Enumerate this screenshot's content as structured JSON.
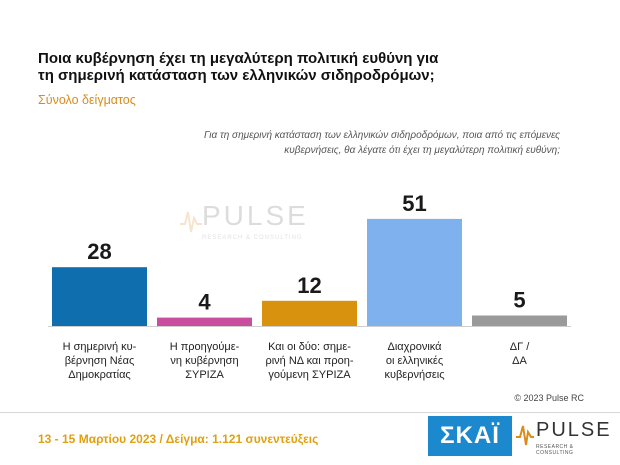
{
  "title": "Ποια κυβέρνηση έχει τη μεγαλύτερη πολιτική ευθύνη για τη σημερινή κατάσταση των ελληνικών σιδηροδρόμων;",
  "subtitle": "Σύνολο δείγματος",
  "question": "Για τη σημερινή κατάσταση των ελληνικών σιδηροδρόμων, ποια από τις επόμενες κυβερνήσεις, θα λέγατε ότι έχει τη μεγαλύτερη πολιτική ευθύνη;",
  "watermark": {
    "text": "PULSE",
    "sub": "RESEARCH & CONSULTING"
  },
  "copyright": "© 2023 Pulse RC",
  "footer": {
    "fieldwork": "13 - 15 Μαρτίου  2023  /  Δείγμα:  1.121 συνεντεύξεις"
  },
  "logos": {
    "skai": "ΣΚΑΪ",
    "pulse": "PULSE",
    "pulse_sub": "RESEARCH & CONSULTING"
  },
  "chart_data": {
    "type": "bar",
    "categories": [
      "Η σημερινή κυ-\nβέρνηση Νέας\nΔημοκρατίας",
      "Η προηγούμε-\nνη κυβέρνηση\nΣΥΡΙΖΑ",
      "Και οι δύο: σημε-\nρινή ΝΔ και προη-\nγούμενη ΣΥΡΙΖΑ",
      "Διαχρονικά\nοι ελληνικές\nκυβερνήσεις",
      "ΔΓ /\nΔΑ"
    ],
    "values": [
      28,
      4,
      12,
      51,
      5
    ],
    "colors": [
      "#0f6fae",
      "#c94f9e",
      "#d9920e",
      "#7fb1ef",
      "#9a9a9a"
    ],
    "ylim": [
      0,
      60
    ],
    "grid": false,
    "legend": "none"
  }
}
